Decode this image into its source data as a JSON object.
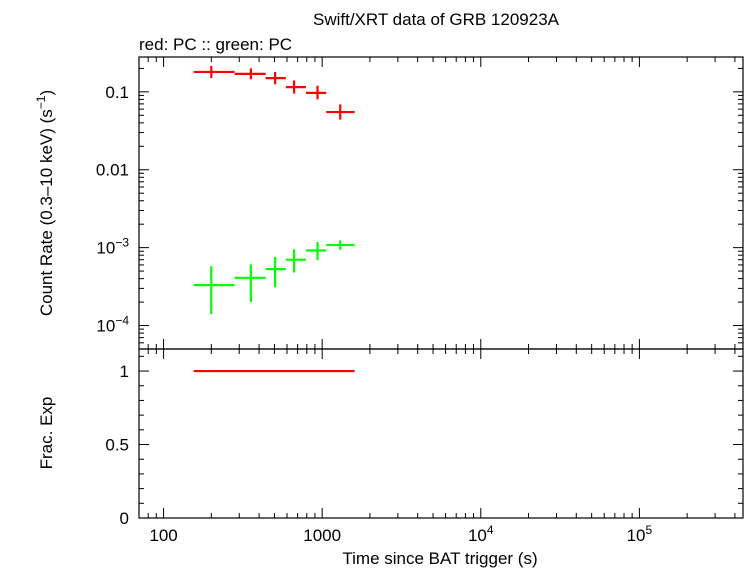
{
  "chart_data": {
    "type": "scatter",
    "title": "Swift/XRT data of GRB 120923A",
    "subtitle": "red: PC  :: green: PC",
    "xlabel": "Time since BAT trigger (s)",
    "x_scale": "log",
    "xlim": [
      70,
      450000
    ],
    "x_ticks": [
      {
        "value": 100,
        "label": "100"
      },
      {
        "value": 1000,
        "label": "1000"
      },
      {
        "value": 10000,
        "base": "10",
        "exp": "4"
      },
      {
        "value": 100000,
        "base": "10",
        "exp": "5"
      }
    ],
    "panels": [
      {
        "name": "rate",
        "ylabel": "Count Rate (0.3–10 keV) (s",
        "ylabel_sup": "−1",
        "ylabel_close": ")",
        "y_scale": "log",
        "ylim": [
          5e-05,
          0.28
        ],
        "y_ticks": [
          {
            "value": 0.1,
            "label": "0.1"
          },
          {
            "value": 0.01,
            "label": "0.01"
          },
          {
            "value": 0.001,
            "base": "10",
            "exp": "−3"
          },
          {
            "value": 0.0001,
            "base": "10",
            "exp": "−4"
          }
        ],
        "series": [
          {
            "color": "#ff0000",
            "points": [
              {
                "x": 200,
                "xlo": 155,
                "xhi": 280,
                "y": 0.18,
                "ylo": 0.15,
                "yhi": 0.215
              },
              {
                "x": 355,
                "xlo": 280,
                "xhi": 440,
                "y": 0.17,
                "ylo": 0.145,
                "yhi": 0.2
              },
              {
                "x": 505,
                "xlo": 440,
                "xhi": 590,
                "y": 0.15,
                "ylo": 0.125,
                "yhi": 0.18
              },
              {
                "x": 665,
                "xlo": 590,
                "xhi": 790,
                "y": 0.115,
                "ylo": 0.095,
                "yhi": 0.14
              },
              {
                "x": 935,
                "xlo": 790,
                "xhi": 1060,
                "y": 0.097,
                "ylo": 0.08,
                "yhi": 0.12
              },
              {
                "x": 1300,
                "xlo": 1060,
                "xhi": 1600,
                "y": 0.055,
                "ylo": 0.044,
                "yhi": 0.069
              }
            ]
          },
          {
            "color": "#00ff00",
            "points": [
              {
                "x": 200,
                "xlo": 155,
                "xhi": 280,
                "y": 0.00033,
                "ylo": 0.00014,
                "yhi": 0.00058
              },
              {
                "x": 355,
                "xlo": 280,
                "xhi": 440,
                "y": 0.00041,
                "ylo": 0.0002,
                "yhi": 0.00061
              },
              {
                "x": 505,
                "xlo": 440,
                "xhi": 590,
                "y": 0.00053,
                "ylo": 0.00031,
                "yhi": 0.00076
              },
              {
                "x": 665,
                "xlo": 590,
                "xhi": 790,
                "y": 0.0007,
                "ylo": 0.00048,
                "yhi": 0.00095
              },
              {
                "x": 935,
                "xlo": 790,
                "xhi": 1060,
                "y": 0.00092,
                "ylo": 0.00069,
                "yhi": 0.00118
              },
              {
                "x": 1300,
                "xlo": 1060,
                "xhi": 1600,
                "y": 0.00108,
                "ylo": 0.00094,
                "yhi": 0.00124
              }
            ]
          }
        ]
      },
      {
        "name": "frac-exp",
        "ylabel": "Frac. Exp",
        "y_scale": "linear",
        "ylim": [
          0,
          1.15
        ],
        "y_ticks": [
          {
            "value": 1,
            "label": "1"
          },
          {
            "value": 0.5,
            "label": "0.5"
          },
          {
            "value": 0,
            "label": "0"
          }
        ],
        "series": [
          {
            "color": "#ff0000",
            "line": [
              {
                "x": 155,
                "y": 1
              },
              {
                "x": 1600,
                "y": 1
              }
            ]
          }
        ]
      }
    ]
  }
}
